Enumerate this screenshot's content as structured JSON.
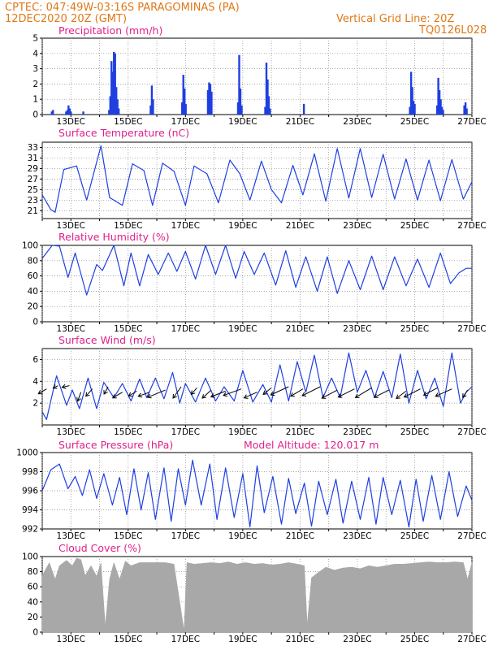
{
  "header": {
    "line1_left": "CPTEC:   047:49W-03:16S   PARAGOMINAS (PA)",
    "line2_left": "12DEC2020 20Z (GMT)",
    "line1_right": "Vertical Grid Line: 20Z",
    "line2_right": "TQ0126L028"
  },
  "colors": {
    "header": "#e07818",
    "panel_title": "#e0208a",
    "series": "#1f3fe0",
    "cloud": "#a8a8a8",
    "arrow": "#000000"
  },
  "x_axis": {
    "ticks": [
      "13DEC",
      "15DEC",
      "17DEC",
      "19DEC",
      "21DEC",
      "23DEC",
      "25DEC",
      "27DEC"
    ],
    "grid": "dotted vertical at 20Z"
  },
  "chart_data": [
    {
      "type": "bar",
      "title": "Precipitation (mm/h)",
      "ylim": [
        0,
        5
      ],
      "yticks": [
        "0",
        "1",
        "2",
        "3",
        "4",
        "5"
      ],
      "bursts": [
        {
          "x": 0.3,
          "values": [
            0.2,
            0.3
          ]
        },
        {
          "x": 0.8,
          "values": [
            0.2,
            0.3,
            0.6,
            0.4,
            0.2
          ]
        },
        {
          "x": 1.4,
          "values": [
            0.2
          ]
        },
        {
          "x": 2.3,
          "values": [
            0.3,
            1.2,
            3.5,
            2.8,
            4.1,
            4.0,
            1.8,
            1.0,
            0.4
          ]
        },
        {
          "x": 3.75,
          "values": [
            0.6,
            1.9,
            1.0
          ]
        },
        {
          "x": 4.85,
          "values": [
            0.8,
            2.6,
            1.7,
            0.7
          ]
        },
        {
          "x": 5.75,
          "values": [
            1.6,
            2.1,
            2.0,
            1.5
          ]
        },
        {
          "x": 6.8,
          "values": [
            0.8,
            3.9,
            1.7,
            0.6
          ]
        },
        {
          "x": 7.75,
          "values": [
            0.5,
            3.4,
            2.3,
            1.2,
            0.4
          ]
        },
        {
          "x": 9.1,
          "values": [
            0.7
          ]
        },
        {
          "x": 12.8,
          "values": [
            0.5,
            2.8,
            1.8,
            0.9,
            0.7
          ]
        },
        {
          "x": 13.75,
          "values": [
            0.6,
            2.4,
            1.6,
            1.0,
            0.5,
            0.3
          ]
        },
        {
          "x": 14.7,
          "values": [
            0.6,
            0.8,
            0.4
          ]
        }
      ]
    },
    {
      "type": "line",
      "title": "Surface Temperature (nC)",
      "ylim": [
        19.5,
        34
      ],
      "yticks": [
        "21",
        "23",
        "25",
        "27",
        "29",
        "31",
        "33"
      ],
      "x": [
        0,
        0.3,
        0.45,
        0.75,
        1.2,
        1.55,
        2.05,
        2.35,
        2.8,
        3.15,
        3.55,
        3.85,
        4.2,
        4.6,
        5.0,
        5.3,
        5.75,
        6.15,
        6.55,
        6.9,
        7.25,
        7.65,
        8.0,
        8.35,
        8.75,
        9.1,
        9.5,
        9.9,
        10.3,
        10.7,
        11.1,
        11.5,
        11.9,
        12.3,
        12.7,
        13.1,
        13.5,
        13.9,
        14.3,
        14.7,
        15.0
      ],
      "y": [
        24,
        21.2,
        20.7,
        28.8,
        29.5,
        23,
        33.3,
        23.5,
        22,
        29.9,
        28.6,
        22,
        30,
        28.5,
        22,
        29.5,
        28,
        22.5,
        30.6,
        28,
        23,
        30.4,
        25,
        22.5,
        29.6,
        24,
        31.8,
        22.8,
        32.8,
        23.4,
        32.8,
        23.5,
        31.7,
        23.2,
        30.8,
        23,
        30.6,
        22.9,
        30.7,
        23.2,
        26.5
      ],
      "title_color": "#e0208a"
    },
    {
      "type": "line",
      "title": "Relative Humidity (%)",
      "ylim": [
        0,
        100
      ],
      "yticks": [
        "0",
        "20",
        "40",
        "60",
        "80",
        "100"
      ],
      "x": [
        0,
        0.35,
        0.6,
        0.9,
        1.15,
        1.55,
        1.9,
        2.1,
        2.5,
        2.85,
        3.1,
        3.4,
        3.7,
        4.05,
        4.4,
        4.7,
        5.0,
        5.35,
        5.7,
        6.05,
        6.4,
        6.75,
        7.05,
        7.4,
        7.75,
        8.15,
        8.5,
        8.85,
        9.2,
        9.6,
        9.95,
        10.3,
        10.7,
        11.1,
        11.5,
        11.9,
        12.3,
        12.7,
        13.1,
        13.5,
        13.9,
        14.25,
        14.55,
        14.8,
        15.0
      ],
      "y": [
        83,
        100,
        99,
        58,
        90,
        35,
        75,
        67,
        100,
        47,
        90,
        47,
        88,
        62,
        90,
        66,
        92,
        56,
        100,
        62,
        100,
        57,
        92,
        62,
        90,
        48,
        93,
        45,
        85,
        40,
        85,
        37,
        80,
        42,
        86,
        42,
        85,
        47,
        82,
        45,
        90,
        50,
        64,
        70,
        70
      ]
    },
    {
      "type": "line",
      "title": "Surface Wind (m/s)",
      "ylim": [
        0,
        7
      ],
      "yticks": [
        "2",
        "4",
        "6"
      ],
      "x": [
        0,
        0.15,
        0.5,
        0.85,
        1.05,
        1.3,
        1.6,
        1.9,
        2.15,
        2.5,
        2.8,
        3.1,
        3.4,
        3.65,
        3.95,
        4.25,
        4.55,
        4.8,
        5.0,
        5.35,
        5.7,
        6.05,
        6.35,
        6.7,
        7.0,
        7.35,
        7.7,
        8.0,
        8.3,
        8.6,
        8.9,
        9.2,
        9.5,
        9.8,
        10.1,
        10.4,
        10.7,
        11.0,
        11.3,
        11.6,
        11.9,
        12.2,
        12.5,
        12.8,
        13.1,
        13.4,
        13.7,
        14.0,
        14.3,
        14.6,
        14.8,
        15.0
      ],
      "y": [
        1.2,
        0.5,
        4.5,
        1.8,
        3.2,
        1.5,
        4.3,
        1.5,
        3.9,
        2.5,
        3.8,
        2.2,
        4.2,
        2.5,
        4.3,
        2.4,
        4.8,
        2.0,
        3.8,
        2.1,
        4.3,
        2.2,
        3.5,
        2.2,
        5.0,
        2.1,
        3.7,
        2.1,
        5.5,
        2.2,
        5.8,
        3.0,
        6.4,
        2.5,
        4.3,
        2.5,
        6.6,
        3.0,
        5.0,
        2.5,
        4.9,
        2.5,
        6.5,
        2.0,
        5.0,
        2.4,
        4.3,
        1.7,
        6.6,
        2.0,
        3.0,
        3.5
      ],
      "vectors": [
        {
          "x": 0.15,
          "y": 3.3,
          "dx": -10,
          "dy": 6
        },
        {
          "x": 0.55,
          "y": 3.6,
          "dx": -6,
          "dy": 3
        },
        {
          "x": 0.95,
          "y": 3.6,
          "dx": -9,
          "dy": 2
        },
        {
          "x": 1.35,
          "y": 3.0,
          "dx": -4,
          "dy": 11
        },
        {
          "x": 1.75,
          "y": 3.3,
          "dx": -8,
          "dy": 9
        },
        {
          "x": 2.3,
          "y": 3.5,
          "dx": -5,
          "dy": 9
        },
        {
          "x": 2.8,
          "y": 3.0,
          "dx": -12,
          "dy": 7
        },
        {
          "x": 3.3,
          "y": 3.1,
          "dx": -10,
          "dy": 6
        },
        {
          "x": 3.75,
          "y": 3.0,
          "dx": -14,
          "dy": 5
        },
        {
          "x": 4.3,
          "y": 3.2,
          "dx": -22,
          "dy": 9
        },
        {
          "x": 4.85,
          "y": 3.5,
          "dx": -10,
          "dy": 14
        },
        {
          "x": 5.4,
          "y": 3.4,
          "dx": -7,
          "dy": 8
        },
        {
          "x": 5.9,
          "y": 3.2,
          "dx": -11,
          "dy": 10
        },
        {
          "x": 6.4,
          "y": 3.1,
          "dx": -18,
          "dy": 7
        },
        {
          "x": 6.95,
          "y": 3.3,
          "dx": -22,
          "dy": 8
        },
        {
          "x": 7.5,
          "y": 3.0,
          "dx": -16,
          "dy": 7
        },
        {
          "x": 8.0,
          "y": 3.4,
          "dx": -10,
          "dy": 8
        },
        {
          "x": 8.6,
          "y": 3.5,
          "dx": -22,
          "dy": 10
        },
        {
          "x": 9.1,
          "y": 3.3,
          "dx": -15,
          "dy": 9
        },
        {
          "x": 9.7,
          "y": 3.5,
          "dx": -22,
          "dy": 11
        },
        {
          "x": 10.3,
          "y": 3.2,
          "dx": -19,
          "dy": 10
        },
        {
          "x": 10.9,
          "y": 3.3,
          "dx": -20,
          "dy": 10
        },
        {
          "x": 11.5,
          "y": 3.4,
          "dx": -20,
          "dy": 12
        },
        {
          "x": 12.1,
          "y": 3.2,
          "dx": -18,
          "dy": 9
        },
        {
          "x": 12.7,
          "y": 3.1,
          "dx": -12,
          "dy": 9
        },
        {
          "x": 13.2,
          "y": 3.3,
          "dx": -20,
          "dy": 10
        },
        {
          "x": 13.8,
          "y": 3.4,
          "dx": -17,
          "dy": 9
        },
        {
          "x": 14.3,
          "y": 3.3,
          "dx": -20,
          "dy": 9
        },
        {
          "x": 14.85,
          "y": 3.2,
          "dx": -6,
          "dy": 9
        }
      ]
    },
    {
      "type": "line",
      "title": "Surface Pressure (hPa)",
      "annotation": "Model Altitude: 120.017 m",
      "ylim": [
        992,
        1000
      ],
      "yticks": [
        "992",
        "994",
        "996",
        "998",
        "1000"
      ],
      "x": [
        0,
        0.3,
        0.6,
        0.9,
        1.15,
        1.4,
        1.65,
        1.9,
        2.15,
        2.45,
        2.7,
        2.95,
        3.2,
        3.45,
        3.7,
        3.95,
        4.25,
        4.5,
        4.75,
        5.0,
        5.25,
        5.55,
        5.85,
        6.1,
        6.4,
        6.7,
        7.0,
        7.25,
        7.5,
        7.75,
        8.05,
        8.35,
        8.6,
        8.85,
        9.15,
        9.4,
        9.65,
        9.95,
        10.25,
        10.5,
        10.8,
        11.1,
        11.4,
        11.65,
        11.9,
        12.2,
        12.5,
        12.8,
        13.05,
        13.3,
        13.6,
        13.9,
        14.2,
        14.5,
        14.8,
        15.0
      ],
      "y": [
        996,
        998.2,
        998.8,
        996.2,
        997.5,
        995.5,
        998.2,
        995.2,
        997.8,
        994.5,
        997.4,
        993.5,
        998.3,
        994.0,
        997.9,
        993.0,
        998.4,
        992.8,
        998.3,
        994.5,
        999.2,
        994.5,
        998.8,
        993.0,
        998.4,
        993.2,
        997.8,
        992.2,
        998.6,
        993.7,
        997.5,
        992.5,
        997.3,
        993.6,
        996.8,
        992.3,
        997.0,
        993.5,
        997.2,
        992.6,
        997.0,
        993.0,
        997.4,
        992.5,
        997.4,
        993.5,
        997.1,
        992.2,
        997.2,
        992.8,
        997.6,
        993.0,
        998.0,
        993.3,
        996.5,
        995.0
      ]
    },
    {
      "type": "area",
      "title": "Cloud Cover (%)",
      "ylim": [
        0,
        100
      ],
      "yticks": [
        "0",
        "20",
        "40",
        "60",
        "80",
        "100"
      ],
      "x": [
        0,
        0.25,
        0.45,
        0.6,
        0.85,
        1.05,
        1.2,
        1.35,
        1.5,
        1.7,
        1.9,
        2.05,
        2.2,
        2.35,
        2.5,
        2.7,
        2.9,
        3.1,
        3.4,
        3.7,
        4.0,
        4.3,
        4.6,
        4.95,
        5.05,
        5.3,
        5.6,
        5.9,
        6.2,
        6.5,
        6.8,
        7.1,
        7.4,
        7.7,
        8.0,
        8.3,
        8.6,
        8.9,
        9.15,
        9.25,
        9.4,
        9.6,
        9.9,
        10.2,
        10.5,
        10.8,
        11.1,
        11.4,
        11.7,
        12.0,
        12.3,
        12.6,
        12.9,
        13.2,
        13.5,
        13.8,
        14.1,
        14.4,
        14.7,
        14.85,
        15.0
      ],
      "y": [
        75,
        92,
        70,
        88,
        95,
        88,
        98,
        96,
        75,
        88,
        74,
        92,
        8,
        70,
        92,
        70,
        94,
        88,
        92,
        92,
        92,
        92,
        90,
        2,
        92,
        90,
        91,
        92,
        91,
        93,
        90,
        92,
        90,
        91,
        89,
        90,
        92,
        90,
        88,
        10,
        72,
        78,
        86,
        82,
        85,
        86,
        84,
        88,
        86,
        88,
        90,
        90,
        91,
        92,
        93,
        92,
        92,
        93,
        92,
        70,
        92
      ]
    }
  ]
}
